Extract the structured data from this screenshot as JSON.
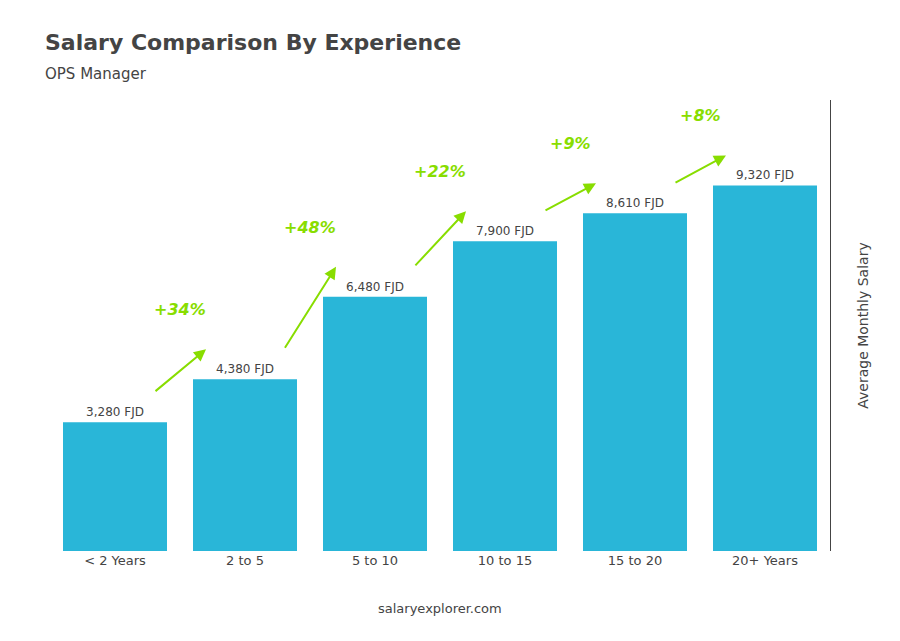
{
  "chart_data": {
    "type": "bar",
    "title": "Salary Comparison By Experience",
    "subtitle": "OPS Manager",
    "categories": [
      "< 2 Years",
      "2 to 5",
      "5 to 10",
      "10 to 15",
      "15 to 20",
      "20+ Years"
    ],
    "values": [
      3280,
      4380,
      6480,
      7900,
      8610,
      9320
    ],
    "value_labels": [
      "3,280 FJD",
      "4,380 FJD",
      "6,480 FJD",
      "7,900 FJD",
      "8,610 FJD",
      "9,320 FJD"
    ],
    "data_labels": true,
    "color": "#29b6d8",
    "ylim": [
      0,
      11500
    ],
    "ylabel": "Average Monthly Salary",
    "tick_labels": "x",
    "grid": false,
    "annotations": [
      {
        "text": "+34%",
        "from": "< 2 Years",
        "to": "2 to 5",
        "color": "#88dd00"
      },
      {
        "text": "+48%",
        "from": "2 to 5",
        "to": "5 to 10",
        "color": "#88dd00"
      },
      {
        "text": "+22%",
        "from": "5 to 10",
        "to": "10 to 15",
        "color": "#88dd00"
      },
      {
        "text": "+9%",
        "from": "10 to 15",
        "to": "15 to 20",
        "color": "#88dd00"
      },
      {
        "text": "+8%",
        "from": "15 to 20",
        "to": "20+ Years",
        "color": "#88dd00"
      },
      {
        "text": "salaryexplorer.com"
      }
    ]
  }
}
